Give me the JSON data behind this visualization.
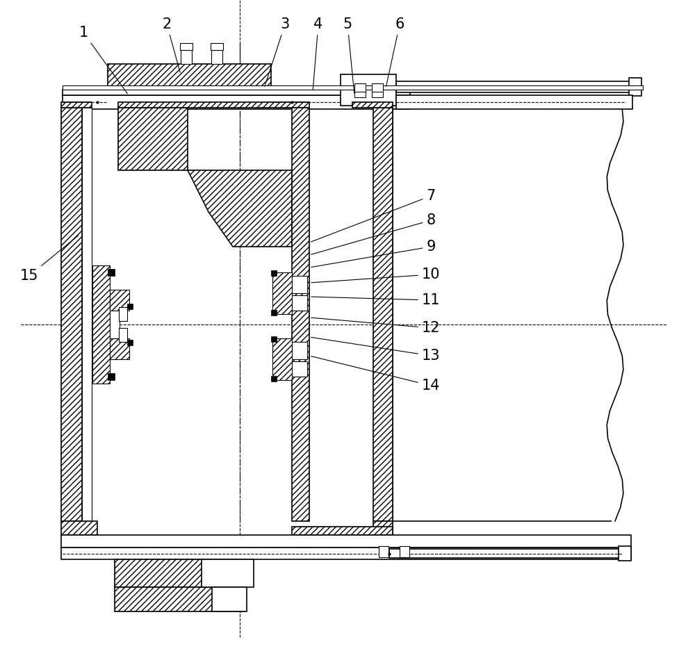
{
  "bg_color": "#ffffff",
  "line_color": "#000000",
  "label_fontsize": 15,
  "lw_main": 1.2,
  "lw_thick": 2.0,
  "lw_thin": 0.8
}
